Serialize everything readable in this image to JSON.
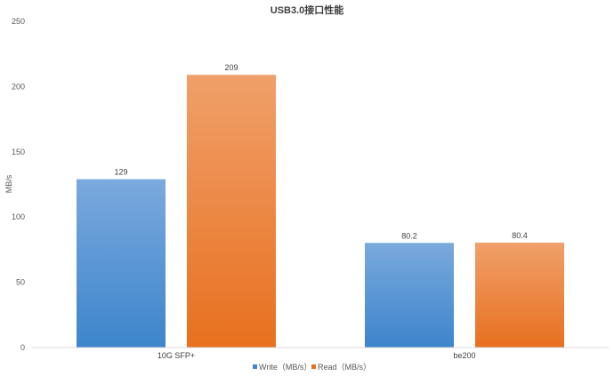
{
  "chart_data": {
    "type": "bar",
    "title": "USB3.0接口性能",
    "ylabel": "MB/s",
    "xlabel": "",
    "categories": [
      "10G SFP+",
      "be200"
    ],
    "series": [
      {
        "name": "Write（MB/s）",
        "values": [
          129,
          80.2
        ],
        "labels": [
          "129",
          "80.2"
        ]
      },
      {
        "name": "Read（MB/s）",
        "values": [
          209,
          80.4
        ],
        "labels": [
          "209",
          "80.4"
        ]
      }
    ],
    "ylim": [
      0,
      250
    ],
    "yticks": [
      0,
      50,
      100,
      150,
      200,
      250
    ],
    "grid": false,
    "legend": "bottom",
    "colors": {
      "write_top": "#7aa9dd",
      "write_bottom": "#3d85cc",
      "read_top": "#f0a06a",
      "read_bottom": "#e8701f"
    }
  }
}
